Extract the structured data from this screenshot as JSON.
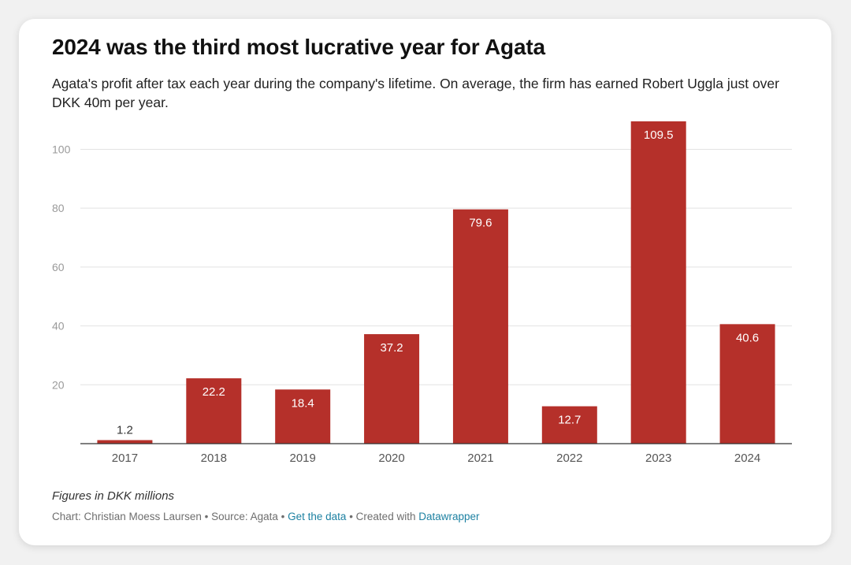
{
  "title": "2024 was the third most lucrative year for Agata",
  "subtitle": "Agata's profit after tax each year during the company's lifetime. On average, the firm has earned Robert Uggla just over DKK 40m per year.",
  "notes": "Figures in DKK millions",
  "byline": {
    "chart_label": "Chart: Christian Moess Laursen",
    "separator": " • ",
    "source_label": "Source: Agata",
    "get_data_link": "Get the data",
    "created_with": "Created with",
    "tool_link": "Datawrapper"
  },
  "colors": {
    "bar": "#b5302a",
    "grid": "#e2e2e2",
    "axis": "#333333",
    "tick_text": "#9a9a9a",
    "category_text": "#555555",
    "label_inside": "#ffffff",
    "label_outside": "#333333"
  },
  "chart_data": {
    "type": "bar",
    "categories": [
      "2017",
      "2018",
      "2019",
      "2020",
      "2021",
      "2022",
      "2023",
      "2024"
    ],
    "values": [
      1.2,
      22.2,
      18.4,
      37.2,
      79.6,
      12.7,
      109.5,
      40.6
    ],
    "value_labels": [
      "1.2",
      "22.2",
      "18.4",
      "37.2",
      "79.6",
      "12.7",
      "109.5",
      "40.6"
    ],
    "yticks": [
      20,
      40,
      60,
      80,
      100
    ],
    "ylim": [
      0,
      109.5
    ],
    "grid": true,
    "xlabel": "",
    "ylabel": ""
  }
}
